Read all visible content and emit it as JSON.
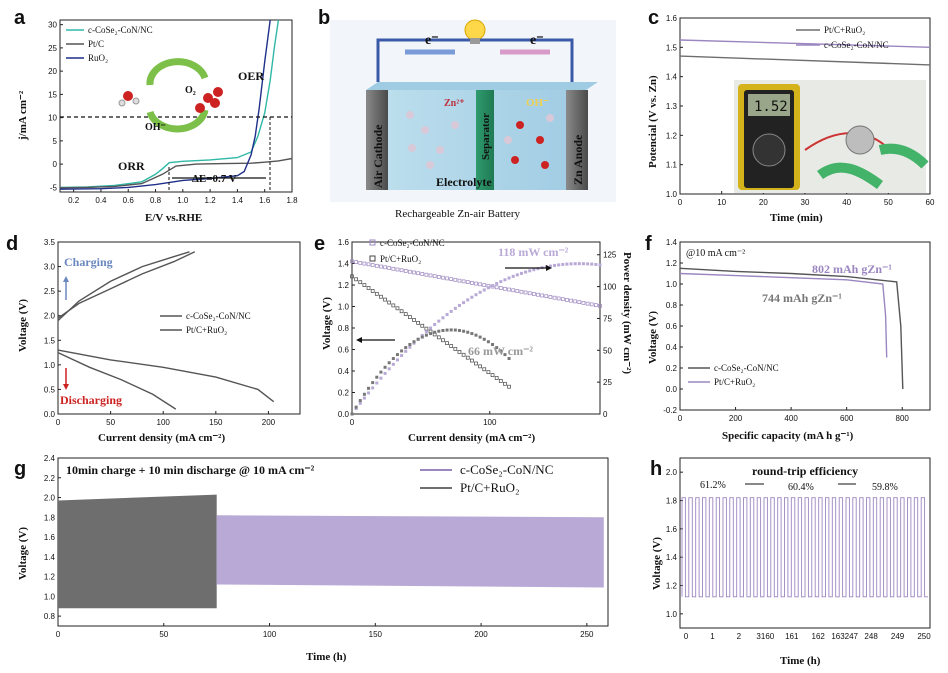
{
  "colors": {
    "teal": "#2fb8a8",
    "navy": "#1f2f8a",
    "purple": "#9b86c0",
    "gray": "#555555",
    "lightpurple": "#b9a9d6",
    "darkgray": "#6e6e6e",
    "blue": "#6a88c0",
    "red": "#cc2222"
  },
  "panels": {
    "a": "a",
    "b": "b",
    "c": "c",
    "d": "d",
    "e": "e",
    "f": "f",
    "g": "g",
    "h": "h"
  },
  "chart_data": [
    {
      "id": "a",
      "type": "line",
      "xlabel": "E/V vs.RHE",
      "ylabel": "j/mA cm⁻²",
      "xlim": [
        0.1,
        1.8
      ],
      "ylim": [
        -6,
        31
      ],
      "xticks": [
        "0.2",
        "0.4",
        "0.6",
        "0.8",
        "1.0",
        "1.2",
        "1.4",
        "1.6",
        "1.8"
      ],
      "yticks": [
        "-5",
        "0",
        "5",
        "10",
        "15",
        "20",
        "25",
        "30"
      ],
      "legend": [
        "c-CoSe₂-CoN/NC",
        "Pt/C",
        "RuO₂"
      ],
      "series": [
        {
          "name": "c-CoSe2-CoN/NC",
          "color": "teal",
          "x": [
            0.1,
            0.3,
            0.5,
            0.7,
            0.8,
            0.85,
            0.9,
            1.0,
            1.2,
            1.4,
            1.5,
            1.55,
            1.6,
            1.64,
            1.67,
            1.7
          ],
          "y": [
            -5,
            -4.9,
            -4.6,
            -3.8,
            -2.2,
            -1,
            0.3,
            0.6,
            0.9,
            1.4,
            2.6,
            6,
            11,
            18,
            25,
            31
          ]
        },
        {
          "name": "Pt/C",
          "color": "gray",
          "x": [
            0.1,
            0.3,
            0.5,
            0.7,
            0.85,
            0.95,
            1.1,
            1.3,
            1.5,
            1.6,
            1.7,
            1.8
          ],
          "y": [
            -5.1,
            -5,
            -4.8,
            -4.2,
            -2.2,
            -0.4,
            0,
            0.1,
            0.2,
            0.4,
            0.7,
            1.2
          ]
        },
        {
          "name": "RuO2",
          "color": "navy",
          "x": [
            0.1,
            0.4,
            0.6,
            0.8,
            1.0,
            1.2,
            1.4,
            1.45,
            1.5,
            1.53,
            1.56,
            1.6,
            1.64
          ],
          "y": [
            -5.4,
            -5.3,
            -5,
            -4.4,
            -3.5,
            -3.1,
            -2.5,
            -1.6,
            2,
            6,
            12,
            22,
            31
          ]
        }
      ],
      "annotations": {
        "oer": "OER",
        "orr": "ORR",
        "delta": "ΔE=0.7 V",
        "o2": "O₂",
        "oh": "OH⁻"
      },
      "refline_y": 10
    },
    {
      "id": "c",
      "type": "line",
      "xlabel": "Time (min)",
      "ylabel": "Potencial (V vs. Zn)",
      "xlim": [
        0,
        60
      ],
      "ylim": [
        1.0,
        1.6
      ],
      "xticks": [
        "0",
        "10",
        "20",
        "30",
        "40",
        "50",
        "60"
      ],
      "yticks": [
        "1.0",
        "1.1",
        "1.2",
        "1.3",
        "1.4",
        "1.5",
        "1.6"
      ],
      "legend": [
        "Pt/C+RuO₂",
        "c-CoSe₂-CoN/NC"
      ],
      "series": [
        {
          "name": "Pt/C+RuO2",
          "color": "darkgray",
          "x": [
            0,
            60
          ],
          "y": [
            1.47,
            1.44
          ]
        },
        {
          "name": "c-CoSe2-CoN/NC",
          "color": "purple",
          "x": [
            0,
            60
          ],
          "y": [
            1.525,
            1.5
          ]
        }
      ],
      "multimeter": "1.52"
    },
    {
      "id": "d",
      "type": "line",
      "xlabel": "Current density (mA cm⁻²)",
      "ylabel": "Voltage (V)",
      "xlim": [
        0,
        230
      ],
      "ylim": [
        0,
        3.5
      ],
      "xticks": [
        "0",
        "50",
        "100",
        "150",
        "200"
      ],
      "yticks": [
        "0.0",
        "0.5",
        "1.0",
        "1.5",
        "2.0",
        "2.5",
        "3.0",
        "3.5"
      ],
      "legend": [
        "c-CoSe₂-CoN/NC",
        "Pt/C+RuO₂"
      ],
      "series": [
        {
          "name": "c-CoSe2-CoN/NC charge",
          "color": "gray",
          "x": [
            0,
            20,
            50,
            80,
            110,
            130
          ],
          "y": [
            1.95,
            2.25,
            2.55,
            2.85,
            3.1,
            3.3
          ]
        },
        {
          "name": "Pt/C+RuO2 charge",
          "color": "gray",
          "x": [
            0,
            20,
            50,
            80,
            110,
            125
          ],
          "y": [
            1.9,
            2.3,
            2.7,
            3.0,
            3.2,
            3.3
          ]
        },
        {
          "name": "c-CoSe2-CoN/NC discharge",
          "color": "gray",
          "x": [
            0,
            50,
            100,
            150,
            190,
            205
          ],
          "y": [
            1.3,
            1.1,
            0.95,
            0.75,
            0.5,
            0.25
          ]
        },
        {
          "name": "Pt/C+RuO2 discharge",
          "color": "gray",
          "x": [
            0,
            30,
            60,
            90,
            112
          ],
          "y": [
            1.25,
            0.95,
            0.7,
            0.4,
            0.1
          ]
        }
      ],
      "charging": "Charging",
      "discharging": "Discharging"
    },
    {
      "id": "e",
      "type": "scatter",
      "xlabel": "Current density (mA cm⁻²)",
      "ylabel": "Voltage (V)",
      "y2label": "Power density (mW cm⁻²)",
      "xlim": [
        0,
        180
      ],
      "ylim": [
        0,
        1.6
      ],
      "y2lim": [
        0,
        135
      ],
      "xticks": [
        "0",
        "100"
      ],
      "yticks": [
        "0.0",
        "0.2",
        "0.4",
        "0.6",
        "0.8",
        "1.0",
        "1.2",
        "1.4",
        "1.6"
      ],
      "y2ticks": [
        "0",
        "25",
        "50",
        "75",
        "100",
        "125"
      ],
      "legend": [
        "c-CoSe₂-CoN/NC",
        "Pt/C+RuO₂"
      ],
      "peak1": "118 mW cm⁻²",
      "peak2": "66 mW cm⁻²"
    },
    {
      "id": "f",
      "type": "line",
      "title": "@10 mA cm⁻²",
      "xlabel": "Specific capacity (mA h g⁻¹)",
      "ylabel": "Voltage (V)",
      "xlim": [
        0,
        900
      ],
      "ylim": [
        -0.2,
        1.4
      ],
      "xticks": [
        "0",
        "200",
        "400",
        "600",
        "800"
      ],
      "yticks": [
        "-0.2",
        "0.0",
        "0.2",
        "0.4",
        "0.6",
        "0.8",
        "1.0",
        "1.2",
        "1.4"
      ],
      "legend": [
        "c-CoSe₂-CoN/NC",
        "Pt/C+RuO₂"
      ],
      "label1": "802 mAh gZn⁻¹",
      "label2": "744 mAh gZn⁻¹",
      "series": [
        {
          "name": "c-CoSe2-CoN/NC",
          "color": "gray",
          "x": [
            0,
            200,
            400,
            600,
            780,
            795,
            802
          ],
          "y": [
            1.15,
            1.12,
            1.1,
            1.07,
            1.02,
            0.6,
            0.0
          ]
        },
        {
          "name": "Pt/C+RuO2",
          "color": "purple",
          "x": [
            0,
            200,
            400,
            600,
            730,
            740,
            744
          ],
          "y": [
            1.1,
            1.08,
            1.06,
            1.04,
            1.0,
            0.7,
            0.3
          ]
        }
      ]
    },
    {
      "id": "g",
      "type": "area",
      "title": "10min charge + 10 min discharge @ 10 mA cm⁻²",
      "xlabel": "Time (h)",
      "ylabel": "Voltage (V)",
      "xlim": [
        0,
        260
      ],
      "ylim": [
        0.7,
        2.4
      ],
      "xticks": [
        "0",
        "50",
        "100",
        "150",
        "200",
        "250"
      ],
      "yticks": [
        "0.8",
        "1.0",
        "1.2",
        "1.4",
        "1.6",
        "1.8",
        "2.0",
        "2.2",
        "2.4"
      ],
      "legend": [
        "c-CoSe₂-CoN/NC",
        "Pt/C+RuO₂"
      ],
      "series": [
        {
          "name": "Pt/C+RuO2",
          "color": "darkgray",
          "x": [
            0,
            75
          ],
          "upper": [
            1.97,
            2.03
          ],
          "lower": [
            0.88,
            0.88
          ]
        },
        {
          "name": "c-CoSe2-CoN/NC",
          "color": "lightpurple",
          "x": [
            75,
            258
          ],
          "upper": [
            1.82,
            1.8
          ],
          "lower": [
            1.12,
            1.09
          ]
        }
      ]
    },
    {
      "id": "h",
      "type": "line",
      "title": "round-trip efficiency",
      "xlabel": "Time (h)",
      "ylabel": "Voltage (V)",
      "ylim": [
        0.9,
        2.1
      ],
      "xticks": [
        "0",
        "1",
        "2",
        "3",
        "160",
        "161",
        "162",
        "163",
        "247",
        "248",
        "249",
        "250"
      ],
      "xtick_display": [
        "0",
        "1",
        "2",
        "3160",
        "161",
        "162",
        "163247",
        "248",
        "249",
        "250"
      ],
      "yticks": [
        "1.0",
        "1.2",
        "1.4",
        "1.6",
        "1.8",
        "2.0"
      ],
      "efficiencies": [
        "61.2%",
        "60.4%",
        "59.8%"
      ],
      "high": 1.82,
      "low": 1.12
    }
  ],
  "schematic": {
    "title": "Rechargeable Zn-air Battery",
    "air_cathode": "Air Cathode",
    "zn_anode": "Zn Anode",
    "separator": "Separator",
    "electrolyte": "Electrolyte",
    "electron": "e⁻",
    "zn": "Zn²⁺",
    "oh": "OH⁻"
  }
}
